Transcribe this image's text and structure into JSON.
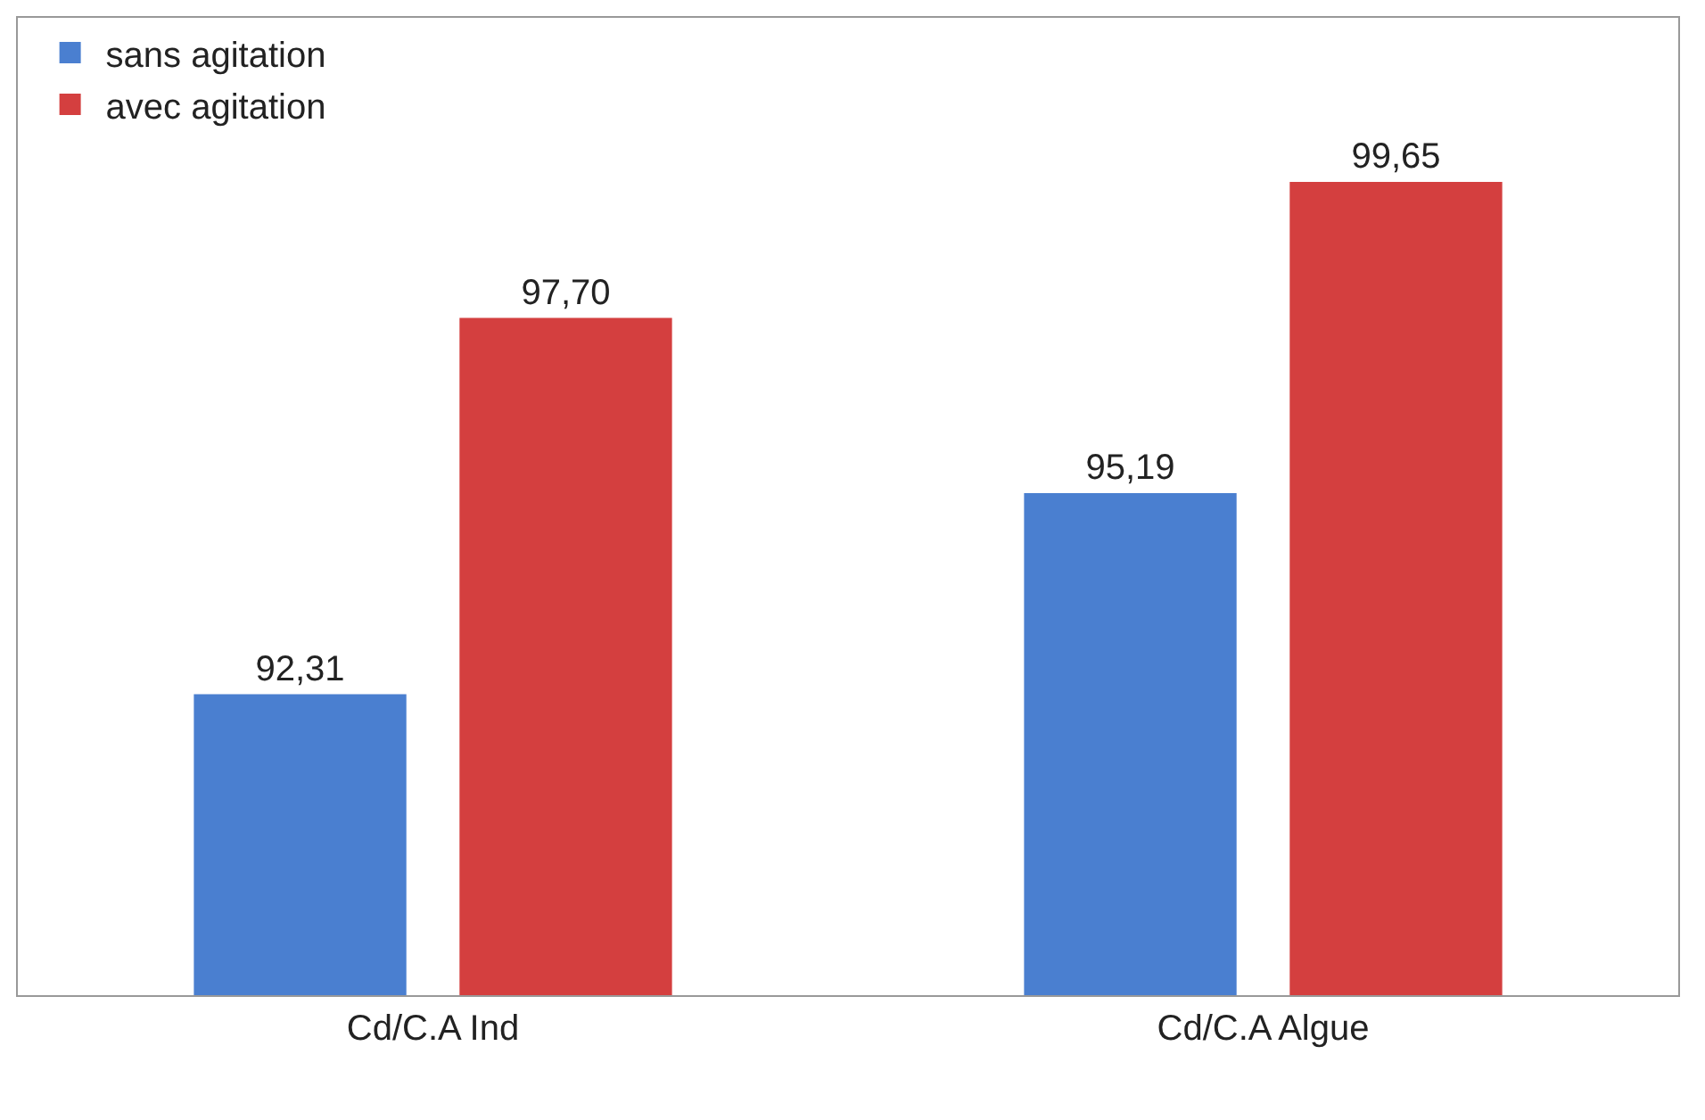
{
  "chart_data": {
    "type": "bar",
    "categories": [
      "Cd/C.A Ind",
      "Cd/C.A Algue"
    ],
    "series": [
      {
        "name": "sans agitation",
        "color": "#4a7fd0",
        "values": [
          92.31,
          95.19
        ],
        "value_labels": [
          "92,31",
          "95,19"
        ]
      },
      {
        "name": "avec agitation",
        "color": "#d43f3f",
        "values": [
          97.7,
          99.65
        ],
        "value_labels": [
          "97,70",
          "99,65"
        ]
      }
    ],
    "ylim": [
      88,
      102
    ],
    "tick_labels": "x",
    "legend": "top left"
  }
}
